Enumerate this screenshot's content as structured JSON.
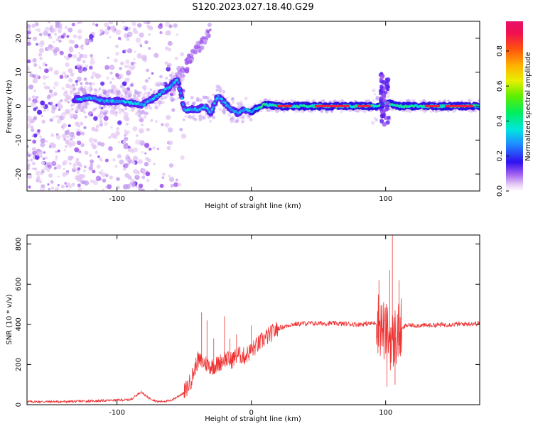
{
  "title": "S120.2023.027.18.40.G29",
  "chart_data": [
    {
      "type": "heatmap",
      "xlabel": "Height of straight line (km)",
      "ylabel": "Frequency (Hz)",
      "xlim": [
        -167,
        170
      ],
      "ylim": [
        -25,
        25
      ],
      "xticks": [
        -100,
        0,
        100
      ],
      "yticks": [
        -20,
        -10,
        0,
        10,
        20
      ],
      "colorbar": {
        "label": "Normalized spectral amplitude",
        "range": [
          0,
          0.97
        ],
        "ticks": [
          0.0,
          0.2,
          0.4,
          0.6,
          0.8
        ],
        "tick_labels": [
          "0.0",
          "0.2",
          "0.4",
          "0.6",
          "0.8"
        ]
      },
      "ridge": {
        "x": [
          -130,
          -120,
          -110,
          -100,
          -90,
          -80,
          -70,
          -60,
          -55,
          -50,
          -45,
          -40,
          -35,
          -30,
          -25,
          -20,
          -15,
          -10,
          -5,
          0,
          5,
          10,
          20,
          40,
          60,
          80,
          95,
          100,
          110,
          130,
          150,
          170
        ],
        "y": [
          2,
          2.5,
          1.5,
          1.5,
          1,
          0.5,
          3,
          6,
          8,
          -1,
          -1,
          -1,
          0,
          -2,
          3,
          1,
          -1,
          -2,
          -1,
          -1.5,
          -0.5,
          0.5,
          0,
          0,
          0,
          0,
          0,
          1,
          0,
          0,
          0,
          0
        ]
      }
    },
    {
      "type": "line",
      "xlabel": "Height of straight line (km)",
      "ylabel": "SNR (10 * v/v)",
      "xlim": [
        -167,
        170
      ],
      "ylim": [
        0,
        845
      ],
      "xticks": [
        -100,
        0,
        100
      ],
      "yticks": [
        0,
        200,
        400,
        600,
        800
      ],
      "color": "#ee3333",
      "envelope": {
        "x": [
          -167,
          -140,
          -110,
          -90,
          -85,
          -82,
          -78,
          -70,
          -60,
          -50,
          -45,
          -40,
          -35,
          -30,
          -25,
          -20,
          -15,
          -10,
          -5,
          0,
          10,
          20,
          30,
          40,
          60,
          80,
          90,
          95,
          100,
          105,
          110,
          115,
          130,
          150,
          170
        ],
        "y": [
          15,
          15,
          20,
          25,
          50,
          65,
          40,
          15,
          20,
          60,
          120,
          220,
          210,
          190,
          200,
          230,
          220,
          250,
          240,
          270,
          330,
          380,
          400,
          405,
          405,
          400,
          405,
          410,
          350,
          320,
          360,
          395,
          395,
          400,
          405
        ]
      },
      "spikes": [
        {
          "x": -37,
          "y": 460
        },
        {
          "x": -33,
          "y": 420
        },
        {
          "x": -28,
          "y": 330
        },
        {
          "x": -20,
          "y": 440
        },
        {
          "x": -16,
          "y": 330
        },
        {
          "x": -11,
          "y": 350
        },
        {
          "x": 0,
          "y": 395
        },
        {
          "x": 95,
          "y": 620
        },
        {
          "x": 101,
          "y": 90
        },
        {
          "x": 103,
          "y": 670
        },
        {
          "x": 105,
          "y": 845
        },
        {
          "x": 107,
          "y": 100
        },
        {
          "x": 110,
          "y": 620
        }
      ]
    }
  ]
}
